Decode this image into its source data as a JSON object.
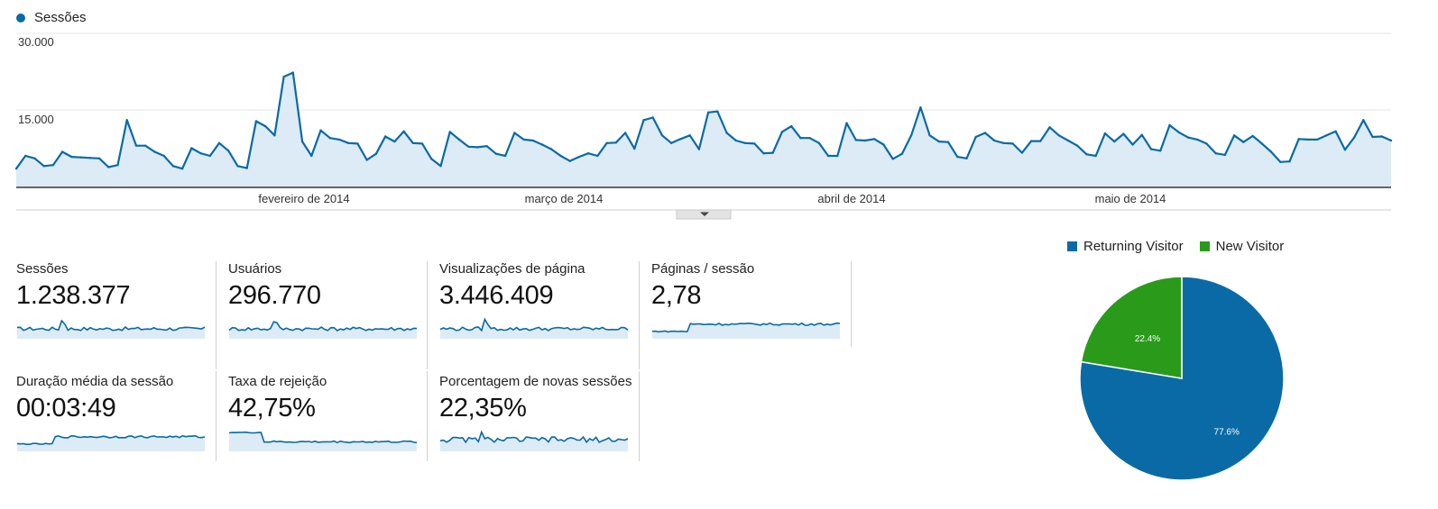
{
  "colors": {
    "primary": "#0a6aa6",
    "fill": "#dcebf5",
    "new_visitor": "#2a9a1a"
  },
  "main_chart": {
    "legend_label": "Sessões",
    "y_ticks": [
      "30.000",
      "15.000"
    ],
    "x_labels": [
      "fevereiro de 2014",
      "março de 2014",
      "abril de 2014",
      "maio de 2014"
    ]
  },
  "metrics": [
    {
      "label": "Sessões",
      "value": "1.238.377"
    },
    {
      "label": "Usuários",
      "value": "296.770"
    },
    {
      "label": "Visualizações de página",
      "value": "3.446.409"
    },
    {
      "label": "Páginas / sessão",
      "value": "2,78"
    },
    {
      "label": "Duração média da sessão",
      "value": "00:03:49"
    },
    {
      "label": "Taxa de rejeição",
      "value": "42,75%"
    },
    {
      "label": "Porcentagem de novas sessões",
      "value": "22,35%"
    }
  ],
  "pie": {
    "legend": [
      {
        "name": "Returning Visitor",
        "color": "#0a6aa6"
      },
      {
        "name": "New Visitor",
        "color": "#2a9a1a"
      }
    ],
    "slices": [
      {
        "name": "Returning Visitor",
        "value": 77.6,
        "label": "77.6%"
      },
      {
        "name": "New Visitor",
        "value": 22.4,
        "label": "22.4%"
      }
    ]
  },
  "chart_data": [
    {
      "type": "area",
      "title": "",
      "series": [
        {
          "name": "Sessões",
          "values": [
            3500,
            6000,
            5500,
            4000,
            4200,
            6800,
            5800,
            5700,
            5600,
            5500,
            3800,
            4200,
            13000,
            8000,
            8000,
            6800,
            6000,
            4000,
            3500,
            7500,
            6500,
            6000,
            8500,
            7000,
            4000,
            3600,
            12800,
            11800,
            10000,
            21500,
            22300,
            8800,
            6000,
            11000,
            9500,
            9200,
            8500,
            8400,
            5200,
            6400,
            9800,
            8800,
            10800,
            8500,
            8400,
            5400,
            4000,
            10700,
            9200,
            7800,
            7700,
            7900,
            6400,
            6000,
            10500,
            9200,
            9000,
            8200,
            7300,
            6000,
            5000,
            5800,
            6500,
            6000,
            8500,
            8600,
            10500,
            7400,
            13000,
            13500,
            10000,
            8500,
            9300,
            10000,
            7300,
            14500,
            14700,
            10500,
            9000,
            8500,
            8400,
            6500,
            6600,
            10700,
            11800,
            9500,
            9500,
            8500,
            6000,
            6000,
            12400,
            9100,
            9000,
            9300,
            8200,
            5400,
            6400,
            10000,
            15500,
            10000,
            8800,
            8700,
            5800,
            5500,
            9700,
            10500,
            9000,
            8500,
            8400,
            6600,
            8900,
            8900,
            11600,
            10000,
            9000,
            8000,
            6300,
            6000,
            10400,
            8800,
            10300,
            8200,
            10100,
            7300,
            7000,
            12000,
            10600,
            9600,
            9200,
            8400,
            6500,
            6200,
            10000,
            8700,
            9900,
            8400,
            6800,
            4800,
            4900,
            9300,
            9200,
            9200,
            10000,
            10800,
            7200,
            9600,
            13000,
            9700,
            9800,
            9000
          ]
        }
      ],
      "x_labels": [
        "fevereiro de 2014",
        "março de 2014",
        "abril de 2014",
        "maio de 2014"
      ],
      "y_ticks": [
        30000,
        15000
      ],
      "ylim": [
        0,
        30000
      ],
      "grid": true,
      "legend": "top-left"
    },
    {
      "type": "pie",
      "categories": [
        "Returning Visitor",
        "New Visitor"
      ],
      "values": [
        77.6,
        22.4
      ],
      "legend": "top"
    }
  ]
}
